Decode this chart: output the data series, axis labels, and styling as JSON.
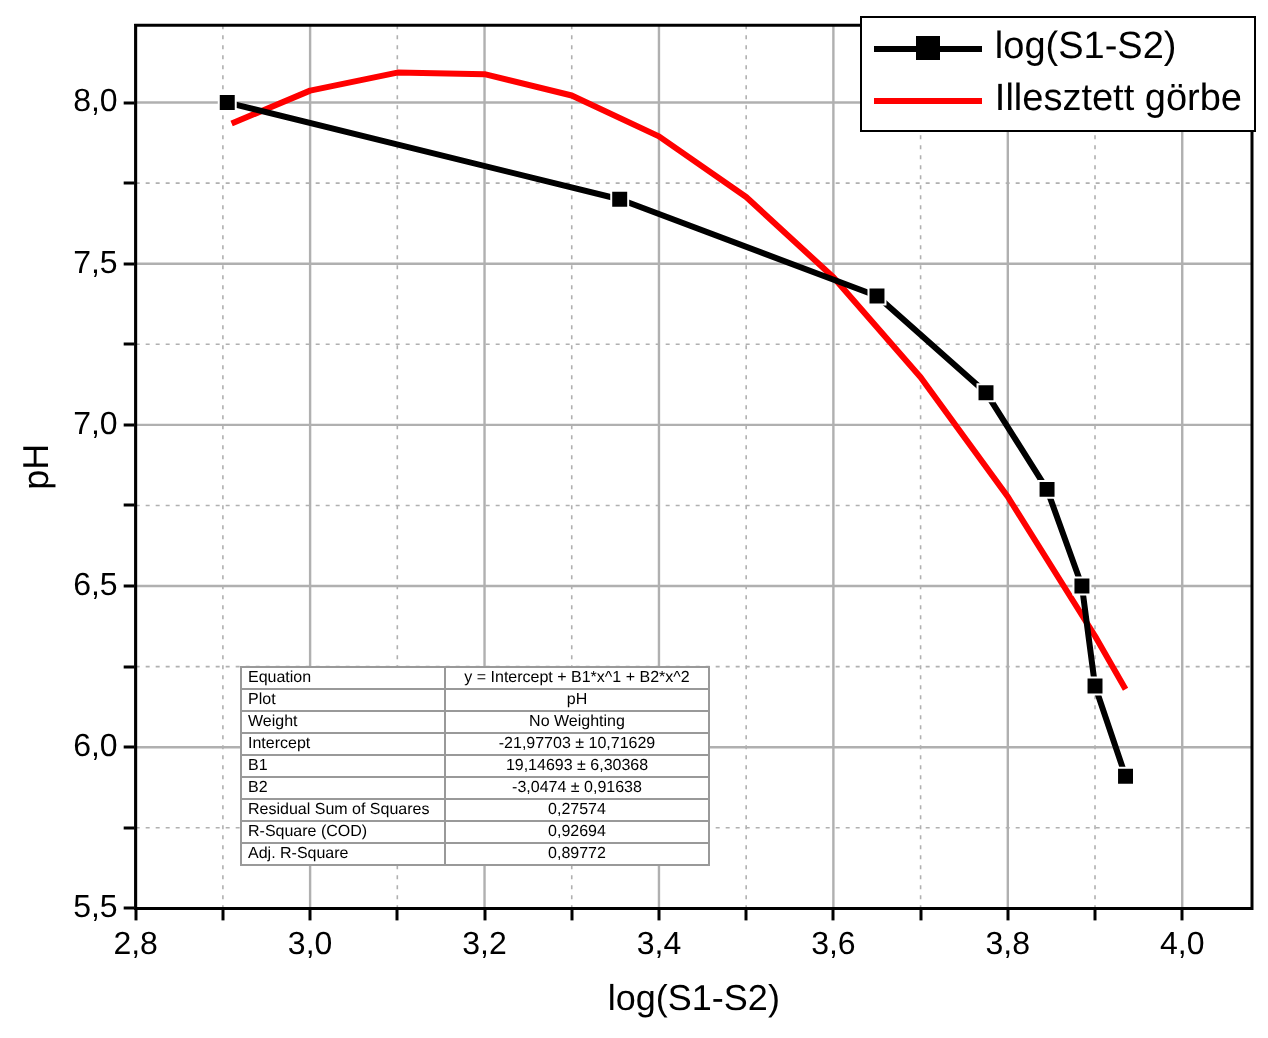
{
  "chart_data": {
    "type": "line",
    "xlabel": "log(S1-S2)",
    "ylabel": "pH",
    "xlim": [
      2.8,
      4.08
    ],
    "ylim": [
      5.5,
      8.24
    ],
    "xticks": [
      {
        "value": 2.8,
        "label": "2,8"
      },
      {
        "value": 2.9,
        "label": null
      },
      {
        "value": 3.0,
        "label": "3,0"
      },
      {
        "value": 3.1,
        "label": null
      },
      {
        "value": 3.2,
        "label": "3,2"
      },
      {
        "value": 3.3,
        "label": null
      },
      {
        "value": 3.4,
        "label": "3,4"
      },
      {
        "value": 3.5,
        "label": null
      },
      {
        "value": 3.6,
        "label": "3,6"
      },
      {
        "value": 3.7,
        "label": null
      },
      {
        "value": 3.8,
        "label": "3,8"
      },
      {
        "value": 3.9,
        "label": null
      },
      {
        "value": 4.0,
        "label": "4,0"
      }
    ],
    "yticks": [
      {
        "value": 5.5,
        "label": "5,5"
      },
      {
        "value": 5.75,
        "label": null
      },
      {
        "value": 6.0,
        "label": "6,0"
      },
      {
        "value": 6.25,
        "label": null
      },
      {
        "value": 6.5,
        "label": "6,5"
      },
      {
        "value": 6.75,
        "label": null
      },
      {
        "value": 7.0,
        "label": "7,0"
      },
      {
        "value": 7.25,
        "label": null
      },
      {
        "value": 7.5,
        "label": "7,5"
      },
      {
        "value": 7.75,
        "label": null
      },
      {
        "value": 8.0,
        "label": "8,0"
      }
    ],
    "grid": true,
    "legend": "top right",
    "series": [
      {
        "name": "log(S1-S2)",
        "color": "#000000",
        "marker": "square",
        "line_style": "solid",
        "x": [
          2.905,
          3.355,
          3.65,
          3.775,
          3.845,
          3.885,
          3.9,
          3.935
        ],
        "values": [
          8.0,
          7.7,
          7.4,
          7.1,
          6.8,
          6.5,
          6.19,
          5.91
        ]
      },
      {
        "name": "Illesztett görbe",
        "color": "#ff0000",
        "marker": "none",
        "line_style": "solid",
        "x": [
          2.91,
          3.0,
          3.1,
          3.2,
          3.3,
          3.4,
          3.5,
          3.6,
          3.7,
          3.8,
          3.9,
          3.935
        ],
        "values": [
          7.935,
          8.037,
          8.093,
          8.088,
          8.022,
          7.895,
          7.707,
          7.458,
          7.148,
          6.777,
          6.345,
          6.18
        ]
      }
    ],
    "annotations": [
      "Equation",
      "y = Intercept + B1*x^1 + B2*x^2",
      "Plot",
      "pH",
      "Weight",
      "No Weighting",
      "Intercept",
      "-21,97703 ± 10,71629",
      "B1",
      "19,14693 ± 6,30368",
      "B2",
      "-3,0474 ± 0,91638",
      "Residual Sum of Squares",
      "0,27574",
      "R-Square (COD)",
      "0,92694",
      "Adj. R-Square",
      "0,89772"
    ]
  }
}
